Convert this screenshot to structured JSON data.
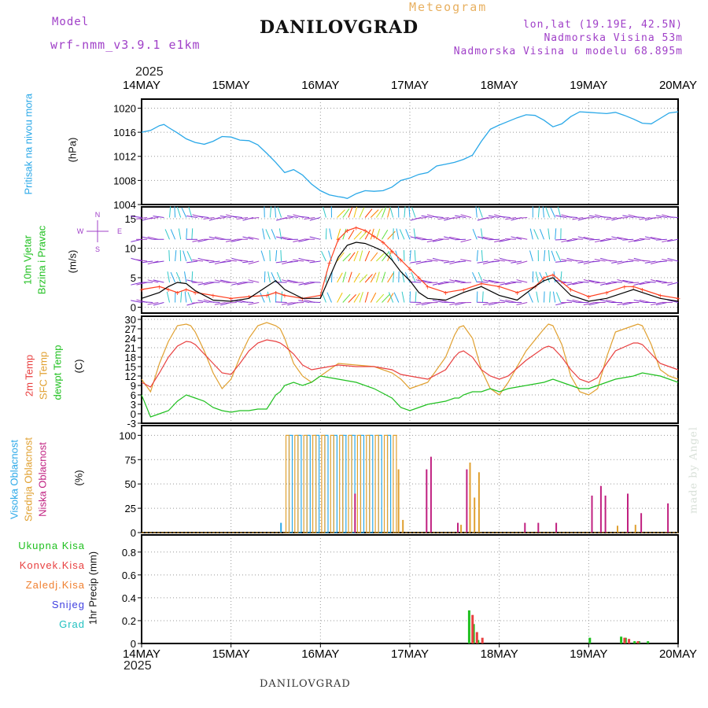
{
  "header": {
    "model_label": "Model",
    "model_name": "wrf-nmm_v3.9.1  e1km",
    "title": "DANILOVGRAD",
    "subtitle": "Meteogram",
    "coords": "lon,lat (19.19E, 42.5N)",
    "altitude": "Nadmorska Visina 53m",
    "model_altitude": "Nadmorska Visina u modelu 68.895m",
    "year_top": "2025",
    "year_bottom": "2025",
    "footer": "DANILOVGRAD",
    "watermark": "made by Angel"
  },
  "colors": {
    "pressure": "#2aa8e8",
    "wind_speed": "#000000",
    "wind_gust": "#ff4020",
    "temp2m": "#e84040",
    "temp_sfc": "#e0a030",
    "dewpoint": "#20c020",
    "cloud_high": "#2aa8e8",
    "cloud_mid": "#e0a030",
    "cloud_low": "#c02080",
    "precip_total": "#20c020",
    "precip_conv": "#e84040",
    "precip_frozen": "#f08030",
    "snow": "#4040e0",
    "hail": "#20c0c0"
  },
  "chart_data": [
    {
      "type": "line",
      "id": "pressure",
      "title": "",
      "xlabel": "",
      "ylabel": "Pritisak na nivou mora",
      "unit": "(hPa)",
      "x_ticks": [
        "14MAY",
        "15MAY",
        "16MAY",
        "17MAY",
        "18MAY",
        "19MAY",
        "20MAY"
      ],
      "yticks": [
        1004,
        1008,
        1012,
        1016,
        1020
      ],
      "ylim": [
        1004,
        1021.5
      ],
      "x": [
        0,
        0.1,
        0.2,
        0.25,
        0.3,
        0.4,
        0.5,
        0.6,
        0.7,
        0.8,
        0.9,
        1.0,
        1.1,
        1.2,
        1.3,
        1.4,
        1.5,
        1.6,
        1.7,
        1.8,
        1.9,
        2.0,
        2.1,
        2.2,
        2.25,
        2.3,
        2.4,
        2.5,
        2.6,
        2.7,
        2.8,
        2.9,
        3.0,
        3.1,
        3.2,
        3.3,
        3.4,
        3.5,
        3.6,
        3.7,
        3.8,
        3.9,
        4.0,
        4.1,
        4.2,
        4.3,
        4.4,
        4.5,
        4.6,
        4.7,
        4.8,
        4.9,
        5.0,
        5.1,
        5.2,
        5.3,
        5.4,
        5.5,
        5.6,
        5.7,
        5.8,
        5.9,
        6.0
      ],
      "series": [
        {
          "values": [
            1016,
            1016.3,
            1017.1,
            1017.3,
            1016.8,
            1015.9,
            1014.9,
            1014.3,
            1014.0,
            1014.5,
            1015.3,
            1015.2,
            1014.7,
            1014.6,
            1013.9,
            1012.5,
            1011.0,
            1009.3,
            1009.8,
            1008.9,
            1007.4,
            1006.3,
            1005.6,
            1005.3,
            1005.2,
            1005.0,
            1005.8,
            1006.3,
            1006.2,
            1006.3,
            1006.9,
            1008.0,
            1008.4,
            1009.0,
            1009.3,
            1010.4,
            1010.7,
            1011.0,
            1011.5,
            1012.2,
            1014.5,
            1016.5,
            1017.2,
            1017.8,
            1018.4,
            1018.9,
            1018.8,
            1018.0,
            1016.9,
            1017.4,
            1018.6,
            1019.4,
            1019.3,
            1019.2,
            1019.1,
            1019.3,
            1018.8,
            1018.2,
            1017.5,
            1017.4,
            1018.3,
            1019.2,
            1019.4
          ]
        }
      ]
    },
    {
      "type": "line",
      "id": "wind",
      "title": "",
      "xlabel": "",
      "ylabel": "10m Vjetar Brzina i Pravac",
      "unit": "(m/s)",
      "compass": [
        "N",
        "W",
        "E",
        "S"
      ],
      "yticks": [
        0,
        5,
        10,
        15
      ],
      "ylim": [
        -1,
        17
      ],
      "x": [
        0,
        0.2,
        0.3,
        0.4,
        0.5,
        0.6,
        0.8,
        1.0,
        1.2,
        1.4,
        1.5,
        1.6,
        1.8,
        2.0,
        2.1,
        2.2,
        2.3,
        2.4,
        2.5,
        2.6,
        2.7,
        2.8,
        2.9,
        3.0,
        3.1,
        3.2,
        3.4,
        3.6,
        3.8,
        4.0,
        4.2,
        4.4,
        4.5,
        4.6,
        4.8,
        5.0,
        5.2,
        5.4,
        5.5,
        5.6,
        5.8,
        6.0
      ],
      "series": [
        {
          "name": "speed",
          "values": [
            1.5,
            2.5,
            3.5,
            4.2,
            4.0,
            2.8,
            1.2,
            1.0,
            1.5,
            3.5,
            4.5,
            3.0,
            1.5,
            1.5,
            5.0,
            8.5,
            10.5,
            11.0,
            10.8,
            10.2,
            9.5,
            8.0,
            6.0,
            4.5,
            2.5,
            1.5,
            1.2,
            2.5,
            3.5,
            2.0,
            1.2,
            3.5,
            4.5,
            5.0,
            2.0,
            1.0,
            1.5,
            2.5,
            3.0,
            2.5,
            1.5,
            1.0
          ]
        },
        {
          "name": "gust",
          "values": [
            3.0,
            3.5,
            3.0,
            2.5,
            3.0,
            2.5,
            2.0,
            1.5,
            1.8,
            2.0,
            2.5,
            2.0,
            1.5,
            2.0,
            7.5,
            11.5,
            13.0,
            13.5,
            13.0,
            12.0,
            11.0,
            9.5,
            8.0,
            6.5,
            5.0,
            3.5,
            2.5,
            3.0,
            4.0,
            3.5,
            2.5,
            3.5,
            5.0,
            5.5,
            3.0,
            1.8,
            2.5,
            3.5,
            3.5,
            3.0,
            2.0,
            1.5
          ]
        }
      ]
    },
    {
      "type": "line",
      "id": "temperature",
      "title": "",
      "xlabel": "",
      "ylabel": "2m Temp / SFC Temp / dewpt Temp",
      "unit": "(C)",
      "legend": [
        "2m Temp",
        "SFC Temp",
        "dewpt Temp"
      ],
      "yticks": [
        -3,
        0,
        3,
        6,
        9,
        12,
        15,
        18,
        21,
        24,
        27,
        30
      ],
      "ylim": [
        -3,
        31
      ],
      "x": [
        0,
        0.1,
        0.2,
        0.3,
        0.4,
        0.5,
        0.55,
        0.6,
        0.7,
        0.8,
        0.9,
        1.0,
        1.1,
        1.2,
        1.3,
        1.4,
        1.5,
        1.55,
        1.6,
        1.7,
        1.8,
        1.9,
        2.0,
        2.2,
        2.4,
        2.6,
        2.8,
        2.9,
        3.0,
        3.1,
        3.2,
        3.4,
        3.5,
        3.55,
        3.6,
        3.7,
        3.8,
        3.9,
        4.0,
        4.1,
        4.3,
        4.5,
        4.55,
        4.6,
        4.7,
        4.8,
        4.9,
        5.0,
        5.1,
        5.2,
        5.3,
        5.5,
        5.55,
        5.6,
        5.7,
        5.8,
        5.9,
        6.0
      ],
      "series": [
        {
          "name": "2m Temp",
          "values": [
            10,
            8.5,
            13,
            18,
            21.5,
            23,
            22.8,
            22,
            19,
            16,
            13,
            12.5,
            16,
            20,
            22.5,
            23.5,
            23,
            22.5,
            21.5,
            19,
            15.5,
            14,
            14.5,
            15.5,
            15,
            15,
            14,
            12.5,
            12,
            11.5,
            11,
            14,
            18,
            19.5,
            20,
            18,
            14,
            12,
            11,
            12,
            17,
            21,
            21.5,
            21,
            18,
            14,
            11,
            10,
            11.5,
            16,
            20,
            22.5,
            22.5,
            22,
            19,
            16,
            15,
            14
          ]
        },
        {
          "name": "SFC Temp",
          "values": [
            11,
            7,
            16,
            23,
            28,
            28.5,
            28,
            26,
            20,
            13,
            8,
            11,
            18,
            24,
            28,
            29,
            28,
            27,
            24,
            16,
            12,
            10,
            12,
            16,
            15.5,
            15,
            13,
            11,
            8,
            9,
            10,
            18,
            25,
            27.5,
            28,
            24,
            14,
            8,
            6,
            10,
            20,
            27,
            28.5,
            28,
            22,
            12,
            7,
            6,
            8,
            18,
            26,
            28,
            28.5,
            28,
            22,
            14,
            12,
            11
          ]
        },
        {
          "name": "dewpt Temp",
          "values": [
            6,
            -1,
            0,
            1,
            4,
            6,
            5.5,
            5,
            4,
            2,
            1,
            0.5,
            1,
            1,
            1.5,
            1.5,
            6,
            7,
            9,
            10,
            9,
            10,
            12,
            11,
            10,
            8,
            5,
            2,
            1,
            2,
            3,
            4,
            5,
            5,
            6,
            7,
            7,
            8,
            7,
            8,
            9,
            10,
            10.5,
            11,
            10,
            9,
            8,
            8,
            9,
            10,
            11,
            12,
            12.5,
            13,
            12.5,
            12,
            11,
            10
          ]
        }
      ]
    },
    {
      "type": "bar",
      "id": "clouds",
      "title": "",
      "xlabel": "",
      "ylabel": "Visoka Oblacnost / Srednja Oblacnost / Niska Oblacnost",
      "unit": "(%)",
      "legend": [
        "Visoka Oblacnost",
        "Srednja Oblacnost",
        "Niska Oblacnost"
      ],
      "yticks": [
        0,
        25,
        50,
        75,
        100
      ],
      "ylim": [
        0,
        110
      ],
      "series": [
        {
          "name": "Visoka Oblacnost",
          "x": [
            1.55,
            1.65,
            1.75,
            1.85,
            1.95,
            2.05,
            2.15,
            2.25,
            2.35,
            2.45,
            2.55,
            2.65,
            2.75
          ],
          "values": [
            10,
            100,
            100,
            100,
            100,
            100,
            100,
            100,
            100,
            100,
            100,
            100,
            100
          ]
        },
        {
          "name": "Srednja Oblacnost",
          "x": [
            1.6,
            1.7,
            1.8,
            1.9,
            2.0,
            2.1,
            2.2,
            2.3,
            2.4,
            2.5,
            2.6,
            2.7,
            2.8,
            2.85,
            2.9,
            3.55,
            3.65,
            3.7,
            3.75,
            5.3,
            5.5
          ],
          "values": [
            100,
            100,
            100,
            100,
            100,
            100,
            100,
            100,
            100,
            100,
            100,
            100,
            100,
            65,
            13,
            8,
            72,
            36,
            62,
            7,
            8
          ]
        },
        {
          "name": "Niska Oblacnost",
          "x": [
            2.35,
            3.15,
            3.2,
            3.5,
            3.6,
            4.25,
            4.4,
            4.6,
            5.0,
            5.1,
            5.15,
            5.4,
            5.55,
            5.85
          ],
          "values": [
            40,
            65,
            78,
            10,
            65,
            10,
            10,
            10,
            38,
            48,
            38,
            40,
            20,
            30
          ]
        }
      ]
    },
    {
      "type": "bar",
      "id": "precip",
      "title": "",
      "xlabel": "",
      "ylabel": "1hr Precip",
      "unit": "(mm)",
      "legend": [
        "Ukupna Kisa",
        "Konvek.Kisa",
        "Zaledj.Kisa",
        "Snijeg",
        "Grad"
      ],
      "yticks": [
        0,
        0.2,
        0.4,
        0.6,
        0.8
      ],
      "ylim": [
        0,
        0.95
      ],
      "x_ticks": [
        "14MAY",
        "15MAY",
        "16MAY",
        "17MAY",
        "18MAY",
        "19MAY",
        "20MAY"
      ],
      "series": [
        {
          "name": "Ukupna Kisa",
          "x": [
            3.65,
            3.7,
            3.75,
            5.0,
            5.35,
            5.4,
            5.5,
            5.55,
            5.65
          ],
          "values": [
            0.29,
            0.17,
            0.03,
            0.05,
            0.06,
            0.05,
            0.02,
            0.02,
            0.02
          ]
        },
        {
          "name": "Konvek.Kisa",
          "x": [
            3.67,
            3.72,
            3.78,
            5.37,
            5.42,
            5.52
          ],
          "values": [
            0.25,
            0.1,
            0.05,
            0.05,
            0.04,
            0.02
          ]
        }
      ]
    }
  ]
}
